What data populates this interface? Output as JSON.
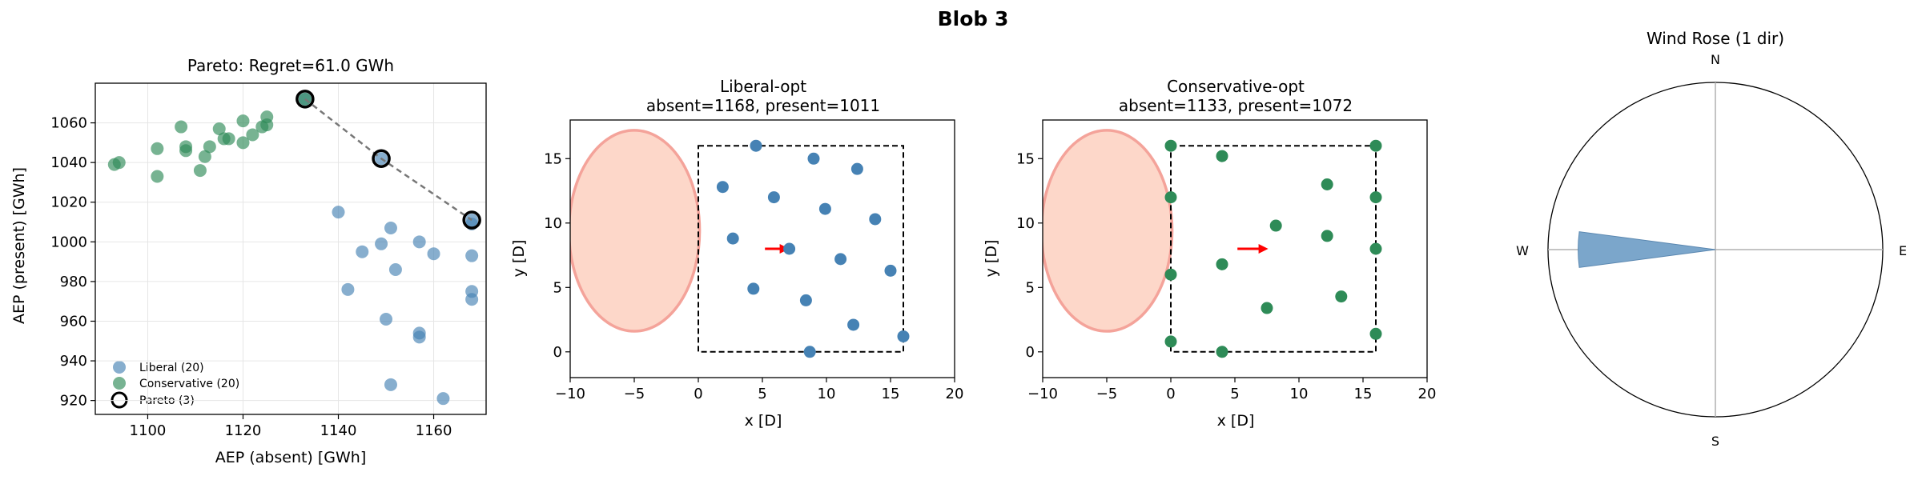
{
  "figure": {
    "suptitle": "Blob 3"
  },
  "colors": {
    "liberal": "#4682b4",
    "conservative": "#2e8b57",
    "blob_fill": "#fdd7c9",
    "blob_edge": "#f4a39a",
    "arrow": "#ff0000",
    "wind": "#7ba6cb",
    "grid": "#e6e6e6"
  },
  "chart_data": [
    {
      "type": "scatter",
      "title": "Pareto: Regret=61.0 GWh",
      "xlabel": "AEP (absent) [GWh]",
      "ylabel": "AEP (present) [GWh]",
      "xlim": [
        1089,
        1171
      ],
      "ylim": [
        913,
        1080
      ],
      "xticks": [
        1100,
        1120,
        1140,
        1160
      ],
      "yticks": [
        920,
        940,
        960,
        980,
        1000,
        1020,
        1040,
        1060
      ],
      "grid": true,
      "series": [
        {
          "name": "Liberal (20)",
          "points": [
            [
              1140,
              1015
            ],
            [
              1145,
              995
            ],
            [
              1142,
              976
            ],
            [
              1149,
              999
            ],
            [
              1151,
              1007
            ],
            [
              1152,
              986
            ],
            [
              1157,
              1000
            ],
            [
              1160,
              994
            ],
            [
              1168,
              1009
            ],
            [
              1168,
              993
            ],
            [
              1168,
              975
            ],
            [
              1168,
              971
            ],
            [
              1150,
              961
            ],
            [
              1157,
              954
            ],
            [
              1157,
              952
            ],
            [
              1151,
              928
            ],
            [
              1162,
              921
            ],
            [
              1168,
              1011
            ],
            [
              1133,
              1072
            ],
            [
              1149,
              1042
            ]
          ]
        },
        {
          "name": "Conservative (20)",
          "points": [
            [
              1093,
              1039
            ],
            [
              1094,
              1040
            ],
            [
              1102,
              1047
            ],
            [
              1102,
              1033
            ],
            [
              1107,
              1058
            ],
            [
              1108,
              1046
            ],
            [
              1108,
              1048
            ],
            [
              1111,
              1036
            ],
            [
              1112,
              1043
            ],
            [
              1113,
              1048
            ],
            [
              1115,
              1057
            ],
            [
              1116,
              1052
            ],
            [
              1117,
              1052
            ],
            [
              1120,
              1050
            ],
            [
              1120,
              1061
            ],
            [
              1122,
              1054
            ],
            [
              1124,
              1058
            ],
            [
              1125,
              1059
            ],
            [
              1125,
              1063
            ],
            [
              1133,
              1072
            ]
          ]
        },
        {
          "name": "Pareto (3)",
          "points": [
            [
              1133,
              1072
            ],
            [
              1149,
              1042
            ],
            [
              1168,
              1011
            ]
          ]
        }
      ]
    },
    {
      "type": "scatter",
      "title": "Liberal-opt",
      "subtitle": "absent=1168, present=1011",
      "xlabel": "x [D]",
      "ylabel": "y [D]",
      "xlim": [
        -10,
        20
      ],
      "ylim": [
        -2,
        18
      ],
      "xticks": [
        -10,
        -5,
        0,
        5,
        10,
        15,
        20
      ],
      "yticks": [
        0,
        5,
        10,
        15
      ],
      "boundary": [
        0,
        0,
        16,
        16
      ],
      "blob": {
        "cx": -5,
        "cy": 9.4,
        "rx": 5.1,
        "ry": 7.8
      },
      "arrow": {
        "from": [
          5.2,
          8
        ],
        "to": [
          7.1,
          8
        ]
      },
      "turbines": [
        [
          4.5,
          16
        ],
        [
          9,
          15
        ],
        [
          12.4,
          14.2
        ],
        [
          1.9,
          12.8
        ],
        [
          5.9,
          12
        ],
        [
          9.9,
          11.1
        ],
        [
          13.8,
          10.3
        ],
        [
          2.7,
          8.8
        ],
        [
          7.1,
          8
        ],
        [
          11.1,
          7.2
        ],
        [
          15,
          6.3
        ],
        [
          4.3,
          4.9
        ],
        [
          8.4,
          4
        ],
        [
          12.1,
          2.1
        ],
        [
          16,
          1.2
        ],
        [
          8.7,
          0
        ]
      ]
    },
    {
      "type": "scatter",
      "title": "Conservative-opt",
      "subtitle": "absent=1133, present=1072",
      "xlabel": "x [D]",
      "ylabel": "y [D]",
      "xlim": [
        -10,
        20
      ],
      "ylim": [
        -2,
        18
      ],
      "xticks": [
        -10,
        -5,
        0,
        5,
        10,
        15,
        20
      ],
      "yticks": [
        0,
        5,
        10,
        15
      ],
      "boundary": [
        0,
        0,
        16,
        16
      ],
      "blob": {
        "cx": -5,
        "cy": 9.4,
        "rx": 5.1,
        "ry": 7.8
      },
      "arrow": {
        "from": [
          5.2,
          8
        ],
        "to": [
          7.6,
          8
        ]
      },
      "turbines": [
        [
          0,
          16
        ],
        [
          4,
          15.2
        ],
        [
          16,
          16
        ],
        [
          0,
          12
        ],
        [
          12.2,
          13
        ],
        [
          16,
          12
        ],
        [
          8.2,
          9.8
        ],
        [
          12.2,
          9
        ],
        [
          16,
          8
        ],
        [
          0,
          6
        ],
        [
          4,
          6.8
        ],
        [
          7.5,
          3.4
        ],
        [
          13.3,
          4.3
        ],
        [
          0,
          0.8
        ],
        [
          4,
          0
        ],
        [
          16,
          1.4
        ]
      ]
    },
    {
      "type": "polar",
      "title": "Wind Rose (1 dir)",
      "directions": [
        "N",
        "E",
        "S",
        "W"
      ],
      "wedges": [
        {
          "direction_deg": 270,
          "width_deg": 15,
          "magnitude": 0.82
        }
      ]
    }
  ]
}
